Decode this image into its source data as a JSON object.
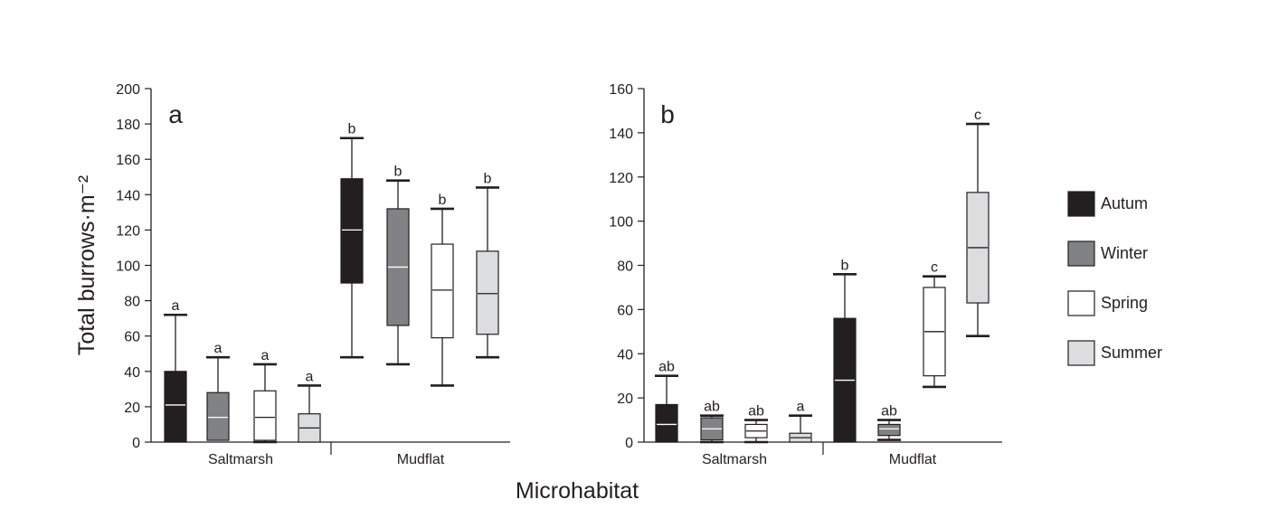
{
  "chart_data": [
    {
      "type": "box",
      "panel_label": "a",
      "ylabel": "Total burrows·m⁻²",
      "ylim": [
        0,
        200
      ],
      "yticks": [
        0,
        20,
        40,
        60,
        80,
        100,
        120,
        140,
        160,
        180,
        200
      ],
      "groups": [
        "Saltmarsh",
        "Mudflat"
      ],
      "boxes": [
        {
          "group": "Saltmarsh",
          "season": "Autum",
          "min": 0,
          "q1": 0,
          "median": 21,
          "q3": 40,
          "max": 72,
          "letter": "a"
        },
        {
          "group": "Saltmarsh",
          "season": "Winter",
          "min": 1,
          "q1": 1,
          "median": 14,
          "q3": 28,
          "max": 48,
          "letter": "a"
        },
        {
          "group": "Saltmarsh",
          "season": "Spring",
          "min": 0,
          "q1": 1,
          "median": 14,
          "q3": 29,
          "max": 44,
          "letter": "a"
        },
        {
          "group": "Saltmarsh",
          "season": "Summer",
          "min": 0,
          "q1": 0,
          "median": 8,
          "q3": 16,
          "max": 32,
          "letter": "a"
        },
        {
          "group": "Mudflat",
          "season": "Autum",
          "min": 48,
          "q1": 90,
          "median": 120,
          "q3": 149,
          "max": 172,
          "letter": "b"
        },
        {
          "group": "Mudflat",
          "season": "Winter",
          "min": 44,
          "q1": 66,
          "median": 99,
          "q3": 132,
          "max": 148,
          "letter": "b"
        },
        {
          "group": "Mudflat",
          "season": "Spring",
          "min": 32,
          "q1": 59,
          "median": 86,
          "q3": 112,
          "max": 132,
          "letter": "b"
        },
        {
          "group": "Mudflat",
          "season": "Summer",
          "min": 48,
          "q1": 61,
          "median": 84,
          "q3": 108,
          "max": 144,
          "letter": "b"
        }
      ]
    },
    {
      "type": "box",
      "panel_label": "b",
      "ylim": [
        0,
        160
      ],
      "yticks": [
        0,
        20,
        40,
        60,
        80,
        100,
        120,
        140,
        160
      ],
      "groups": [
        "Saltmarsh",
        "Mudflat"
      ],
      "boxes": [
        {
          "group": "Saltmarsh",
          "season": "Autum",
          "min": 0,
          "q1": 0,
          "median": 8,
          "q3": 17,
          "max": 30,
          "letter": "ab"
        },
        {
          "group": "Saltmarsh",
          "season": "Winter",
          "min": 0,
          "q1": 1,
          "median": 6,
          "q3": 11,
          "max": 12,
          "letter": "ab"
        },
        {
          "group": "Saltmarsh",
          "season": "Spring",
          "min": 0,
          "q1": 2,
          "median": 5,
          "q3": 8,
          "max": 10,
          "letter": "ab"
        },
        {
          "group": "Saltmarsh",
          "season": "Summer",
          "min": 0,
          "q1": 0,
          "median": 2,
          "q3": 4,
          "max": 12,
          "letter": "a"
        },
        {
          "group": "Mudflat",
          "season": "Autum",
          "min": 0,
          "q1": 0,
          "median": 28,
          "q3": 56,
          "max": 76,
          "letter": "b"
        },
        {
          "group": "Mudflat",
          "season": "Winter",
          "min": 1,
          "q1": 3,
          "median": 6,
          "q3": 8,
          "max": 10,
          "letter": "ab"
        },
        {
          "group": "Mudflat",
          "season": "Spring",
          "min": 25,
          "q1": 30,
          "median": 50,
          "q3": 70,
          "max": 75,
          "letter": "c"
        },
        {
          "group": "Mudflat",
          "season": "Summer",
          "min": 48,
          "q1": 63,
          "median": 88,
          "q3": 113,
          "max": 144,
          "letter": "c"
        }
      ]
    }
  ],
  "xlabel": "Microhabitat",
  "legend": {
    "placement": "right",
    "items": [
      {
        "season": "Autum",
        "label": "Autum",
        "color": "#231f20"
      },
      {
        "season": "Winter",
        "label": "Winter",
        "color": "#808285"
      },
      {
        "season": "Spring",
        "label": "Spring",
        "color": "#ffffff"
      },
      {
        "season": "Summer",
        "label": "Summer",
        "color": "#dcddde"
      }
    ]
  },
  "colors": {
    "axis": "#231f20",
    "median_dark": "#ffffff",
    "median_light": "#231f20"
  }
}
